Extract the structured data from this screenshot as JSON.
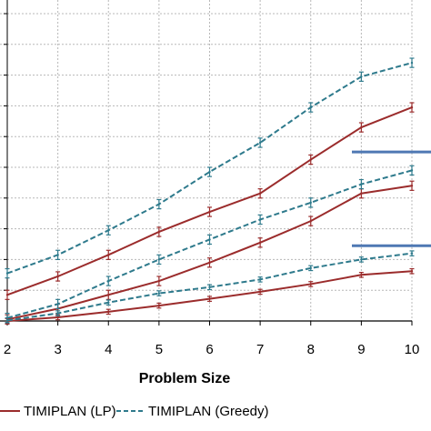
{
  "chart_data": {
    "type": "line",
    "title": "",
    "xlabel": "Problem Size",
    "ylabel": "",
    "x": [
      2,
      3,
      4,
      5,
      6,
      7,
      8,
      9,
      10
    ],
    "xlim": [
      2,
      10
    ],
    "ylim": [
      0,
      10
    ],
    "grid": true,
    "legend_position": "bottom",
    "series": [
      {
        "name": "TIMIPLAN (LP)",
        "style": "solid",
        "color": "#9b2c2c",
        "values": [
          0.85,
          1.45,
          2.15,
          2.9,
          3.55,
          4.15,
          5.25,
          6.3,
          6.95
        ],
        "error": 0.15
      },
      {
        "name": "TIMIPLAN (Greedy)",
        "style": "dashed",
        "color": "#2e7a8c",
        "values": [
          1.55,
          2.15,
          2.95,
          3.8,
          4.85,
          5.8,
          6.95,
          7.95,
          8.4
        ],
        "error": 0.15
      },
      {
        "name": "",
        "style": "solid",
        "color": "#9b2c2c",
        "values": [
          0.05,
          0.4,
          0.85,
          1.3,
          1.9,
          2.55,
          3.25,
          4.15,
          4.4
        ],
        "error": 0.15
      },
      {
        "name": "",
        "style": "dashed",
        "color": "#2e7a8c",
        "values": [
          0.1,
          0.55,
          1.3,
          2.0,
          2.65,
          3.3,
          3.85,
          4.45,
          4.9
        ],
        "error": 0.15
      },
      {
        "name": "",
        "style": "solid",
        "color": "#9b2c2c",
        "values": [
          0.0,
          0.12,
          0.3,
          0.5,
          0.72,
          0.95,
          1.2,
          1.5,
          1.62
        ],
        "error": 0.08
      },
      {
        "name": "",
        "style": "dashed",
        "color": "#2e7a8c",
        "values": [
          0.02,
          0.25,
          0.6,
          0.9,
          1.1,
          1.35,
          1.72,
          2.0,
          2.2
        ],
        "error": 0.08
      }
    ],
    "reference_lines": {
      "color": "#4f78b3",
      "values": [
        5.5,
        2.45
      ]
    }
  },
  "legend": {
    "items": [
      {
        "label": "TIMIPLAN (LP)",
        "style": "solid",
        "color": "#9b2c2c"
      },
      {
        "label": "TIMIPLAN (Greedy)",
        "style": "dashed",
        "color": "#2e7a8c"
      }
    ]
  }
}
